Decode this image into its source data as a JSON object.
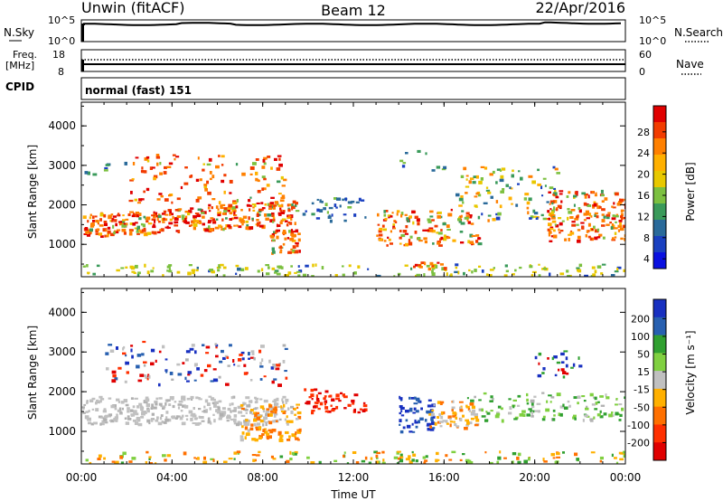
{
  "header": {
    "radar": "Unwin (fitACF)",
    "beam": "Beam 12",
    "date": "22/Apr/2016"
  },
  "strips": {
    "nsky": {
      "label": "N.Sky",
      "ticks": [
        "10^5",
        "10^0"
      ]
    },
    "nsearch": {
      "label": "N.Search",
      "ticks": [
        "10^5",
        "10^0"
      ]
    },
    "freq": {
      "label_line1": "Freq.",
      "label_line2": "[MHz]",
      "ticks": [
        "18",
        "8"
      ]
    },
    "nave": {
      "label": "Nave",
      "ticks": [
        "60",
        "0"
      ]
    },
    "cpid": {
      "label": "CPID",
      "value": "normal (fast) 151"
    }
  },
  "chart_data": [
    {
      "type": "heatmap",
      "name": "power",
      "ylabel": "Slant Range [km]",
      "yticks": [
        1000,
        2000,
        3000,
        4000
      ],
      "ylim": [
        180,
        4600
      ],
      "colorbar": {
        "label": "Power [dB]",
        "ticks": [
          "28",
          "24",
          "20",
          "16",
          "12",
          "8",
          "4"
        ],
        "colors": [
          "#e00000",
          "#f23c00",
          "#ff8000",
          "#ffb000",
          "#e8c800",
          "#7cc040",
          "#3a9a5a",
          "#2a6a9a",
          "#1a40c0",
          "#0a10e0"
        ]
      }
    },
    {
      "type": "heatmap",
      "name": "velocity",
      "ylabel": "Slant Range [km]",
      "yticks": [
        1000,
        2000,
        3000,
        4000
      ],
      "ylim": [
        180,
        4600
      ],
      "colorbar": {
        "label": "Velocity [m s⁻¹]",
        "ticks": [
          "200",
          "100",
          "50",
          "15",
          "-15",
          "-50",
          "-100",
          "-200"
        ],
        "colors": [
          "#1830c0",
          "#2860b0",
          "#30a030",
          "#80d040",
          "#c0c0c0",
          "#ffb000",
          "#ff7000",
          "#ff3000",
          "#e00000"
        ]
      }
    }
  ],
  "xaxis": {
    "label": "Time UT",
    "ticks": [
      "00:00",
      "04:00",
      "08:00",
      "12:00",
      "16:00",
      "20:00",
      "00:00"
    ]
  }
}
